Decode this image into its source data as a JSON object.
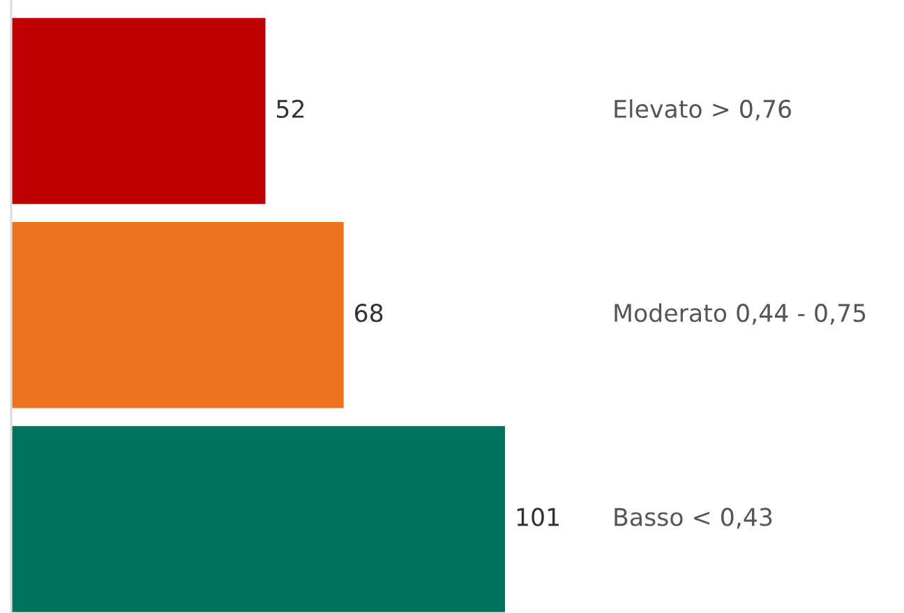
{
  "chart_data": {
    "type": "bar",
    "orientation": "horizontal",
    "categories": [
      "Elevato > 0,76",
      "Moderato 0,44 - 0,75",
      "Basso < 0,43"
    ],
    "values": [
      52,
      68,
      101
    ],
    "colors": [
      "#bf0000",
      "#ec7320",
      "#00735e"
    ],
    "data_labels": true
  }
}
